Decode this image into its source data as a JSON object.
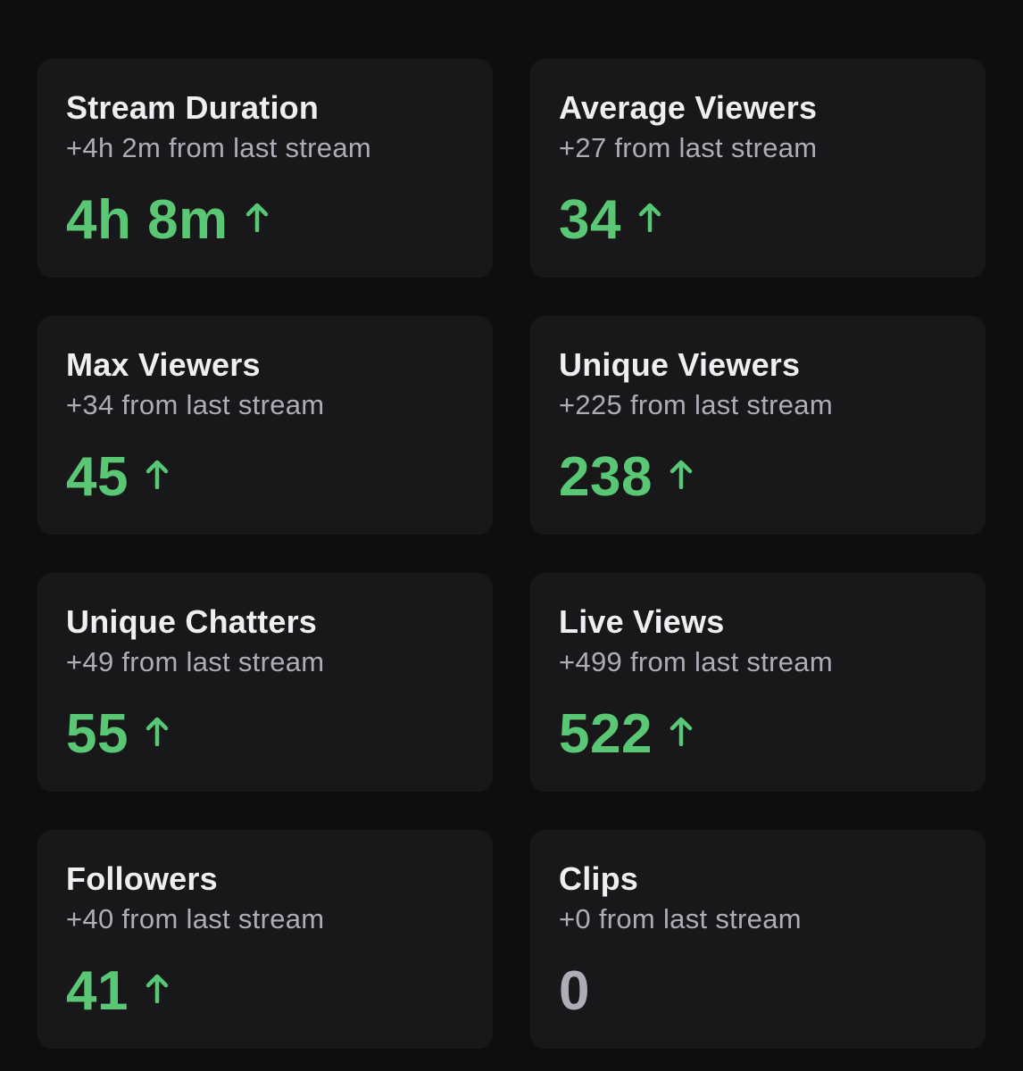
{
  "colors": {
    "background": "#0e0e10",
    "card": "#18181b",
    "title": "#efeff1",
    "subtitle": "#adadb8",
    "positive": "#5ac775",
    "neutral": "#adadb8"
  },
  "stats": [
    {
      "title": "Stream Duration",
      "delta": "+4h 2m from last stream",
      "value": "4h 8m",
      "trend": "up"
    },
    {
      "title": "Average Viewers",
      "delta": "+27 from last stream",
      "value": "34",
      "trend": "up"
    },
    {
      "title": "Max Viewers",
      "delta": "+34 from last stream",
      "value": "45",
      "trend": "up"
    },
    {
      "title": "Unique Viewers",
      "delta": "+225 from last stream",
      "value": "238",
      "trend": "up"
    },
    {
      "title": "Unique Chatters",
      "delta": "+49 from last stream",
      "value": "55",
      "trend": "up"
    },
    {
      "title": "Live Views",
      "delta": "+499 from last stream",
      "value": "522",
      "trend": "up"
    },
    {
      "title": "Followers",
      "delta": "+40 from last stream",
      "value": "41",
      "trend": "up"
    },
    {
      "title": "Clips",
      "delta": "+0 from last stream",
      "value": "0",
      "trend": "none"
    }
  ]
}
